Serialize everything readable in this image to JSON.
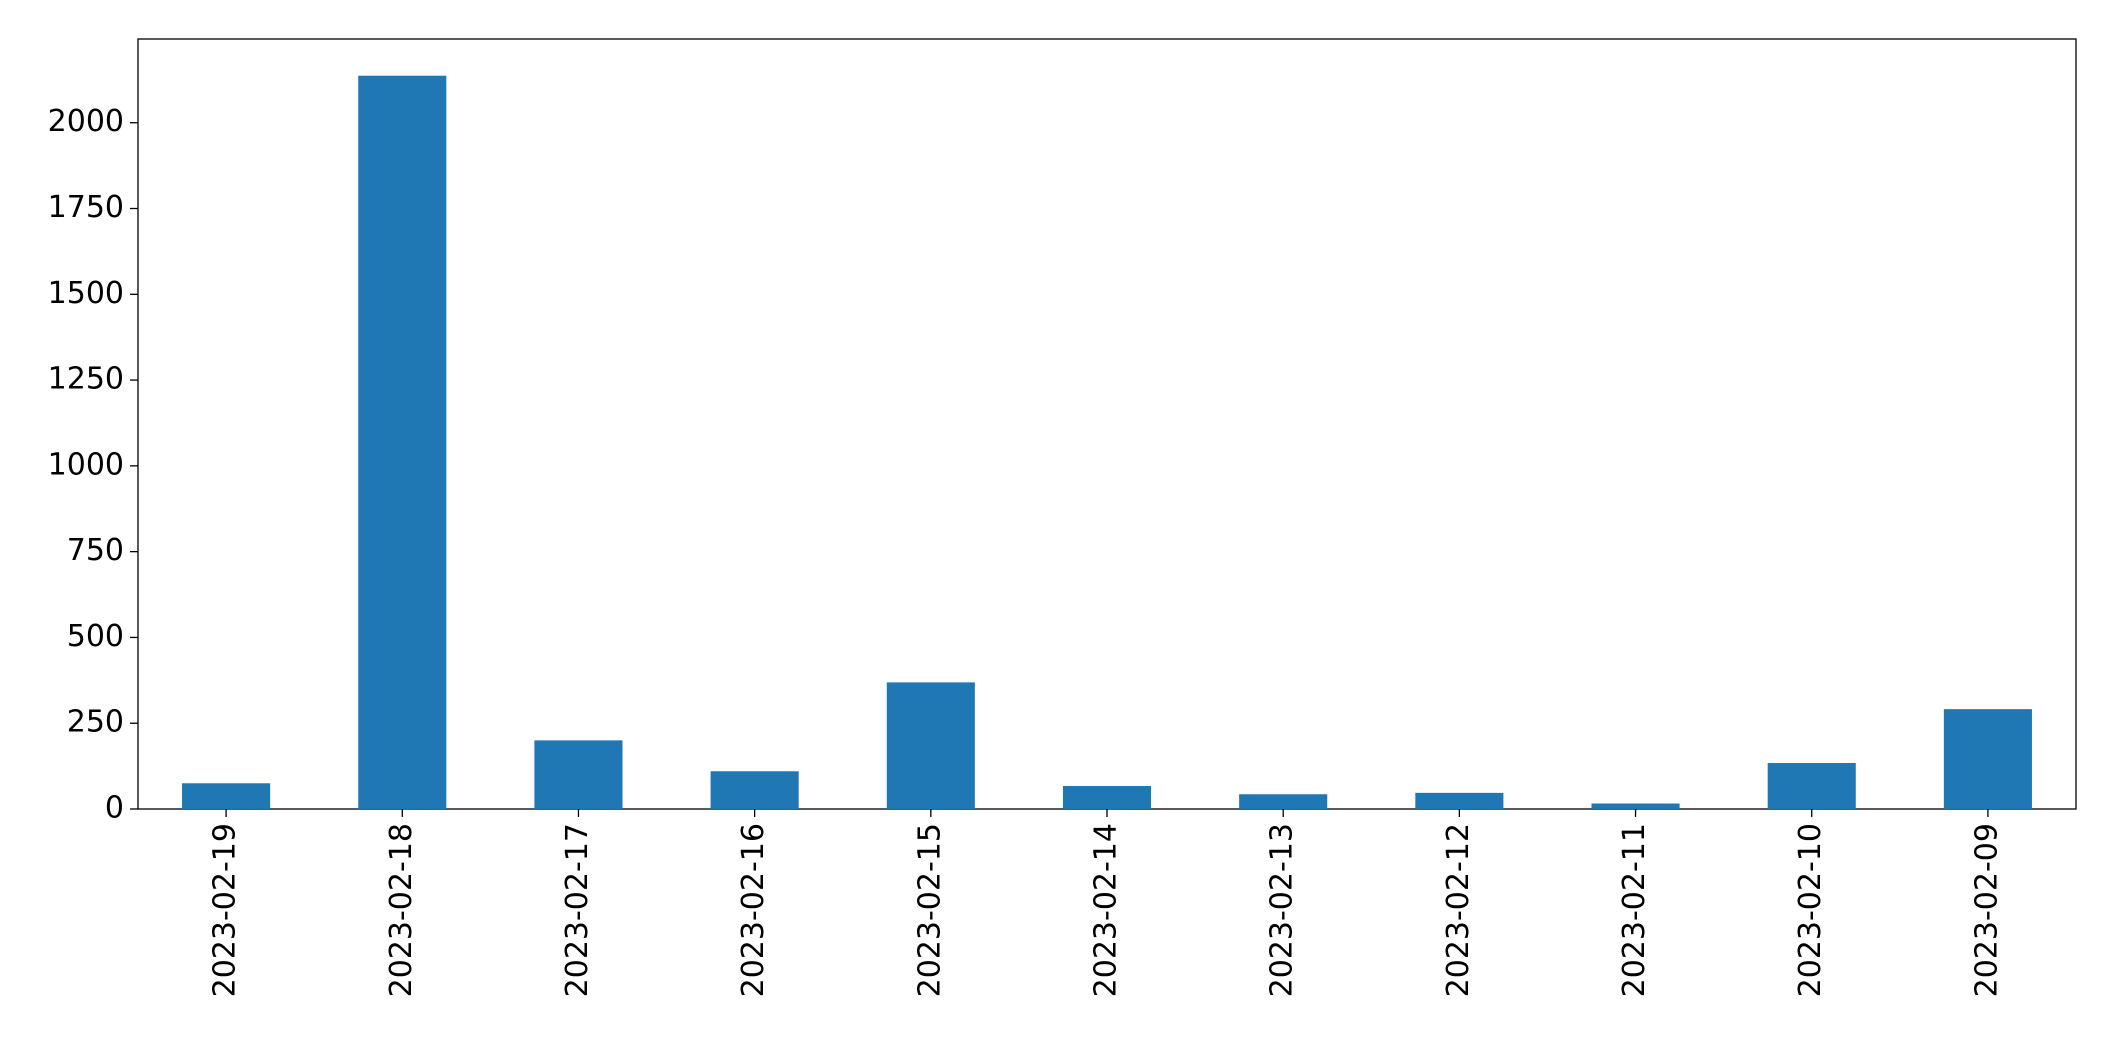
{
  "chart_data": {
    "type": "bar",
    "categories": [
      "2023-02-19",
      "2023-02-18",
      "2023-02-17",
      "2023-02-16",
      "2023-02-15",
      "2023-02-14",
      "2023-02-13",
      "2023-02-12",
      "2023-02-11",
      "2023-02-10",
      "2023-02-09"
    ],
    "values": [
      75,
      2137,
      200,
      110,
      369,
      67,
      43,
      47,
      16,
      134,
      291
    ],
    "color": "#1f77b4",
    "ylim": [
      0,
      2244
    ],
    "yticks": [
      0,
      250,
      500,
      750,
      1000,
      1250,
      1500,
      1750,
      2000
    ],
    "grid": false
  }
}
